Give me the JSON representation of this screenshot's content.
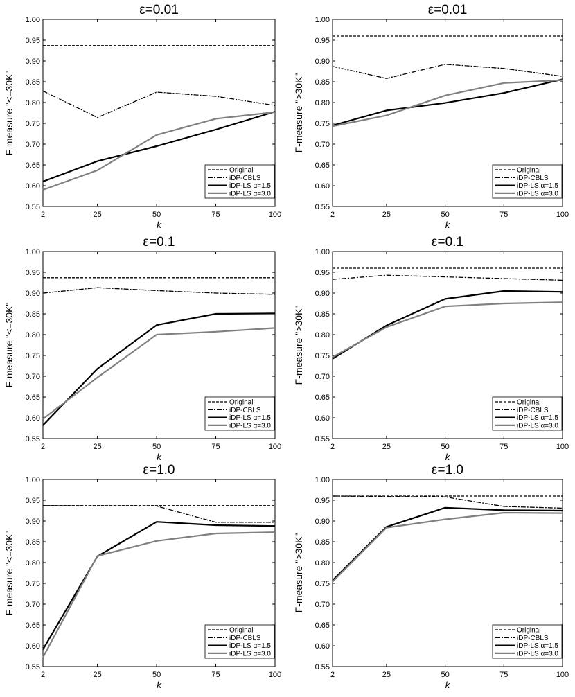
{
  "colors": {
    "original": "#000000",
    "cbls": "#000000",
    "ls15": "#000000",
    "ls30": "#808080",
    "axis": "#000000",
    "background": "#ffffff"
  },
  "chart_data": [
    {
      "type": "line",
      "title": "ε=0.01",
      "xlabel": "k",
      "ylabel": "F-measure \"<=30K\"",
      "x": [
        2,
        25,
        50,
        75,
        100
      ],
      "xlim": [
        2,
        100
      ],
      "ylim": [
        0.55,
        1.0
      ],
      "yticks": [
        "0.55",
        "0.60",
        "0.65",
        "0.70",
        "0.75",
        "0.80",
        "0.85",
        "0.90",
        "0.95",
        "1.00"
      ],
      "legend_position": "bottom-right",
      "series": [
        {
          "name": "Original",
          "values": [
            0.937,
            0.937,
            0.937,
            0.937,
            0.937
          ]
        },
        {
          "name": "iDP-CBLS",
          "values": [
            0.828,
            0.764,
            0.825,
            0.815,
            0.793
          ]
        },
        {
          "name": "iDP-LS α=1.5",
          "values": [
            0.61,
            0.659,
            0.695,
            0.735,
            0.778
          ]
        },
        {
          "name": "iDP-LS α=3.0",
          "values": [
            0.59,
            0.637,
            0.722,
            0.761,
            0.777
          ]
        }
      ]
    },
    {
      "type": "line",
      "title": "ε=0.01",
      "xlabel": "k",
      "ylabel": "F-measure \">30K\"",
      "x": [
        2,
        25,
        50,
        75,
        100
      ],
      "xlim": [
        2,
        100
      ],
      "ylim": [
        0.55,
        1.0
      ],
      "yticks": [
        "0.55",
        "0.60",
        "0.65",
        "0.70",
        "0.75",
        "0.80",
        "0.85",
        "0.90",
        "0.95",
        "1.00"
      ],
      "legend_position": "bottom-right",
      "series": [
        {
          "name": "Original",
          "values": [
            0.96,
            0.96,
            0.96,
            0.96,
            0.96
          ]
        },
        {
          "name": "iDP-CBLS",
          "values": [
            0.887,
            0.858,
            0.892,
            0.882,
            0.863
          ]
        },
        {
          "name": "iDP-LS α=1.5",
          "values": [
            0.745,
            0.781,
            0.799,
            0.823,
            0.856
          ]
        },
        {
          "name": "iDP-LS α=3.0",
          "values": [
            0.743,
            0.769,
            0.817,
            0.847,
            0.854
          ]
        }
      ]
    },
    {
      "type": "line",
      "title": "ε=0.1",
      "xlabel": "k",
      "ylabel": "F-measure \"<=30K\"",
      "x": [
        2,
        25,
        50,
        75,
        100
      ],
      "xlim": [
        2,
        100
      ],
      "ylim": [
        0.55,
        1.0
      ],
      "yticks": [
        "0.55",
        "0.60",
        "0.65",
        "0.70",
        "0.75",
        "0.80",
        "0.85",
        "0.90",
        "0.95",
        "1.00"
      ],
      "legend_position": "bottom-right",
      "series": [
        {
          "name": "Original",
          "values": [
            0.937,
            0.937,
            0.937,
            0.937,
            0.937
          ]
        },
        {
          "name": "iDP-CBLS",
          "values": [
            0.9,
            0.913,
            0.906,
            0.9,
            0.897
          ]
        },
        {
          "name": "iDP-LS α=1.5",
          "values": [
            0.582,
            0.718,
            0.823,
            0.85,
            0.851
          ]
        },
        {
          "name": "iDP-LS α=3.0",
          "values": [
            0.597,
            0.697,
            0.8,
            0.807,
            0.816
          ]
        }
      ]
    },
    {
      "type": "line",
      "title": "ε=0.1",
      "xlabel": "k",
      "ylabel": "F-measure \">30K\"",
      "x": [
        2,
        25,
        50,
        75,
        100
      ],
      "xlim": [
        2,
        100
      ],
      "ylim": [
        0.55,
        1.0
      ],
      "yticks": [
        "0.55",
        "0.60",
        "0.65",
        "0.70",
        "0.75",
        "0.80",
        "0.85",
        "0.90",
        "0.95",
        "1.00"
      ],
      "legend_position": "bottom-right",
      "series": [
        {
          "name": "Original",
          "values": [
            0.96,
            0.96,
            0.96,
            0.96,
            0.96
          ]
        },
        {
          "name": "iDP-CBLS",
          "values": [
            0.933,
            0.943,
            0.939,
            0.935,
            0.931
          ]
        },
        {
          "name": "iDP-LS α=1.5",
          "values": [
            0.742,
            0.822,
            0.886,
            0.905,
            0.903
          ]
        },
        {
          "name": "iDP-LS α=3.0",
          "values": [
            0.746,
            0.818,
            0.868,
            0.875,
            0.878
          ]
        }
      ]
    },
    {
      "type": "line",
      "title": "ε=1.0",
      "xlabel": "k",
      "ylabel": "F-measure \"<=30K\"",
      "x": [
        2,
        25,
        50,
        75,
        100
      ],
      "xlim": [
        2,
        100
      ],
      "ylim": [
        0.55,
        1.0
      ],
      "yticks": [
        "0.55",
        "0.60",
        "0.65",
        "0.70",
        "0.75",
        "0.80",
        "0.85",
        "0.90",
        "0.95",
        "1.00"
      ],
      "legend_position": "bottom-right",
      "series": [
        {
          "name": "Original",
          "values": [
            0.937,
            0.937,
            0.937,
            0.937,
            0.937
          ]
        },
        {
          "name": "iDP-CBLS",
          "values": [
            0.937,
            0.936,
            0.936,
            0.897,
            0.897
          ]
        },
        {
          "name": "iDP-LS α=1.5",
          "values": [
            0.591,
            0.815,
            0.898,
            0.89,
            0.888
          ]
        },
        {
          "name": "iDP-LS α=3.0",
          "values": [
            0.572,
            0.816,
            0.852,
            0.87,
            0.873
          ]
        }
      ]
    },
    {
      "type": "line",
      "title": "ε=1.0",
      "xlabel": "k",
      "ylabel": "F-measure \">30K\"",
      "x": [
        2,
        25,
        50,
        75,
        100
      ],
      "xlim": [
        2,
        100
      ],
      "ylim": [
        0.55,
        1.0
      ],
      "yticks": [
        "0.55",
        "0.60",
        "0.65",
        "0.70",
        "0.75",
        "0.80",
        "0.85",
        "0.90",
        "0.95",
        "1.00"
      ],
      "legend_position": "bottom-right",
      "series": [
        {
          "name": "Original",
          "values": [
            0.96,
            0.96,
            0.96,
            0.96,
            0.96
          ]
        },
        {
          "name": "iDP-CBLS",
          "values": [
            0.96,
            0.959,
            0.958,
            0.935,
            0.931
          ]
        },
        {
          "name": "iDP-LS α=1.5",
          "values": [
            0.757,
            0.886,
            0.932,
            0.926,
            0.925
          ]
        },
        {
          "name": "iDP-LS α=3.0",
          "values": [
            0.754,
            0.884,
            0.904,
            0.92,
            0.919
          ]
        }
      ]
    }
  ]
}
